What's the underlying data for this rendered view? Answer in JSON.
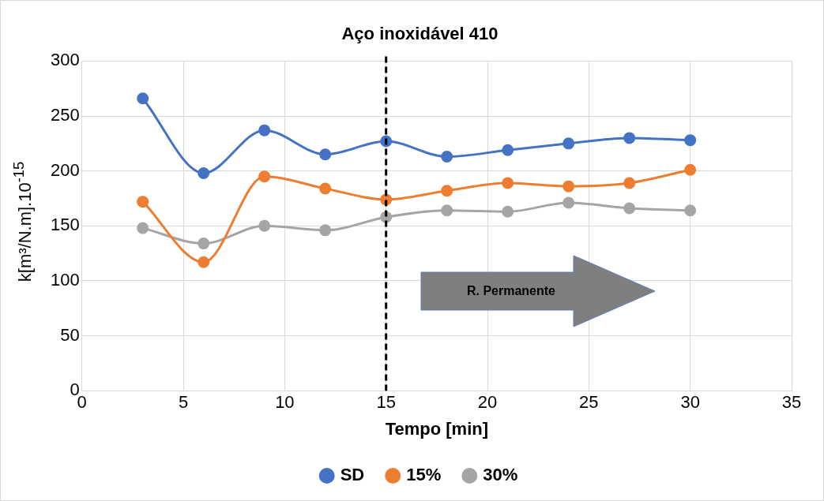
{
  "chart_data": {
    "type": "line",
    "title": "Aço inoxidável 410",
    "xlabel": "Tempo [min]",
    "ylabel": "k[m³/N.m].10$^{-15}$",
    "x": [
      3,
      6,
      9,
      12,
      15,
      18,
      21,
      24,
      27,
      30
    ],
    "series": [
      {
        "name": "SD",
        "color": "#4472c4",
        "values": [
          266,
          198,
          237,
          215,
          227,
          213,
          219,
          225,
          230,
          228
        ]
      },
      {
        "name": "15%",
        "color": "#ed7d31",
        "values": [
          172,
          117,
          195,
          184,
          174,
          182,
          189,
          186,
          189,
          201
        ]
      },
      {
        "name": "30%",
        "color": "#a5a5a5",
        "values": [
          148,
          134,
          150,
          146,
          158,
          164,
          163,
          171,
          166,
          164
        ]
      }
    ],
    "xlim": [
      0,
      35
    ],
    "xticks": [
      0,
      5,
      10,
      15,
      20,
      25,
      30,
      35
    ],
    "ylim": [
      0,
      300
    ],
    "yticks": [
      0,
      50,
      100,
      150,
      200,
      250,
      300
    ],
    "ref_lines": [
      {
        "axis": "x",
        "value": 15,
        "color": "#000000",
        "line_style": "dashed"
      }
    ],
    "annotations": [
      "R. Permanente"
    ],
    "grid": true,
    "legend": "bottom",
    "marker": "circle",
    "line_style": "solid"
  }
}
